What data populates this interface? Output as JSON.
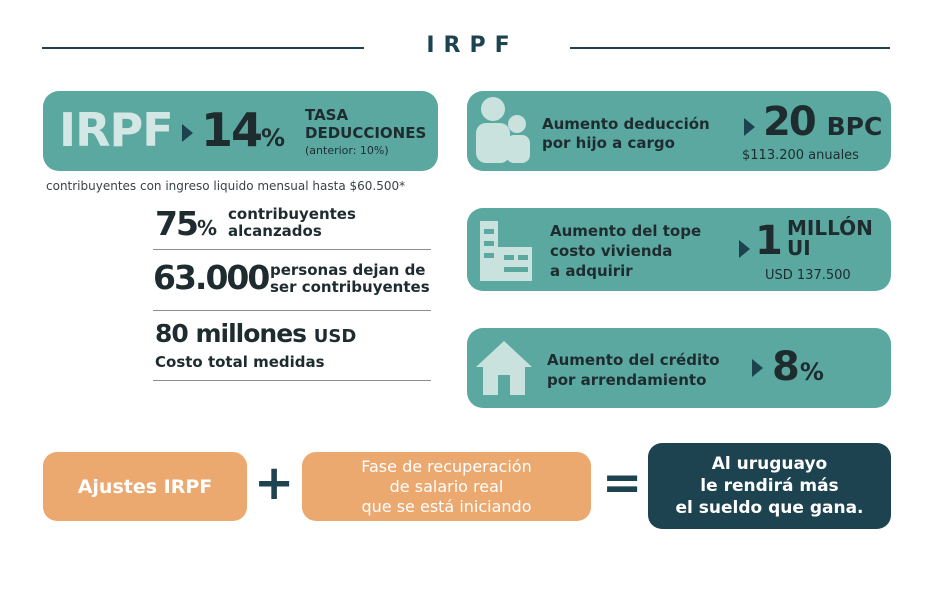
{
  "header": {
    "title": "IRPF"
  },
  "tasa_card": {
    "brand": "IRPF",
    "value": "14",
    "unit": "%",
    "label_line1": "TASA",
    "label_line2": "DEDUCCIONES",
    "note": "(anterior: 10%)"
  },
  "caption": "contribuyentes con ingreso liquido mensual hasta $60.500*",
  "stats": [
    {
      "value": "75",
      "unit": "%",
      "line1": "contribuyentes",
      "line2": "alcanzados"
    },
    {
      "value": "63.000",
      "line1": "personas dejan de",
      "line2": "ser contribuyentes"
    },
    {
      "value": "80 millones",
      "unit": "USD",
      "line1": "Costo total medidas"
    }
  ],
  "right_cards": [
    {
      "icon": "family-icon",
      "line1": "Aumento deducción",
      "line2": "por hijo a cargo",
      "value": "20",
      "unit": "BPC",
      "sub": "$113.200 anuales"
    },
    {
      "icon": "building-icon",
      "line1": "Aumento del tope",
      "line2": "costo vivienda",
      "line3": "a adquirir",
      "value": "1",
      "unit_line1": "MILLÓN",
      "unit_line2": "UI",
      "sub": "USD 137.500"
    },
    {
      "icon": "house-icon",
      "line1": "Aumento del crédito",
      "line2": "por arrendamiento",
      "value": "8",
      "unit": "%"
    }
  ],
  "equation": {
    "term1": "Ajustes IRPF",
    "plus": "+",
    "term2_line1": "Fase de recuperación",
    "term2_line2": "de salario real",
    "term2_line3": "que se está iniciando",
    "equals": "=",
    "result_line1": "Al uruguayo",
    "result_line2": "le rendirá más",
    "result_line3": "el sueldo que gana."
  },
  "colors": {
    "teal": "#5ba8a0",
    "navy": "#1e4350",
    "orange": "#eba86f",
    "icon": "#c9e2de"
  }
}
